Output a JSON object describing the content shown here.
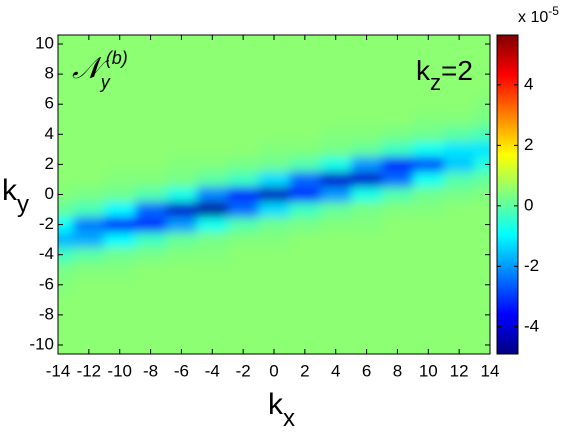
{
  "chart_data": {
    "type": "heatmap",
    "panel_label": {
      "base": "𝒩",
      "sub": "y",
      "sup": "(b)"
    },
    "kz_label": {
      "base": "k",
      "sub": "z",
      "rest": "=2"
    },
    "x_label": {
      "base": "k",
      "sub": "x"
    },
    "y_label": {
      "base": "k",
      "sub": "y"
    },
    "colorbar_label": {
      "base": "x 10",
      "sup": "-5"
    },
    "colormap": "jet",
    "xlim": [
      -14,
      14
    ],
    "ylim": [
      -10.6,
      10.6
    ],
    "zlim": [
      -4.9,
      5.65
    ],
    "xticks": [
      -14,
      -12,
      -10,
      -8,
      -6,
      -4,
      -2,
      0,
      2,
      4,
      6,
      8,
      10,
      12,
      14
    ],
    "yticks": [
      -10,
      -8,
      -6,
      -4,
      -2,
      0,
      2,
      4,
      6,
      8,
      10
    ],
    "zticks": [
      -4,
      -2,
      0,
      2,
      4
    ],
    "x": [
      -14,
      -12,
      -10,
      -8,
      -6,
      -4,
      -2,
      0,
      2,
      4,
      6,
      8,
      10,
      12,
      14
    ],
    "y": [
      10,
      9,
      8,
      7,
      6,
      5,
      4,
      3,
      2,
      1,
      0,
      -1,
      -2,
      -3,
      -4,
      -5,
      -6,
      -7,
      -8,
      -9,
      -10
    ],
    "z": [
      [
        0.5,
        0.5,
        0.5,
        0.5,
        0.5,
        0.5,
        0.5,
        0.5,
        0.5,
        0.5,
        0.5,
        0.5,
        0.5,
        0.5,
        0.5
      ],
      [
        0.5,
        0.5,
        0.5,
        0.5,
        0.5,
        0.5,
        0.5,
        0.5,
        0.5,
        0.5,
        0.5,
        0.5,
        0.5,
        0.5,
        0.5
      ],
      [
        0.5,
        0.5,
        0.5,
        0.5,
        0.5,
        0.5,
        0.5,
        0.5,
        0.5,
        0.5,
        0.5,
        0.5,
        0.5,
        0.5,
        0.5
      ],
      [
        0.5,
        0.5,
        0.5,
        0.5,
        0.5,
        0.5,
        0.5,
        0.5,
        0.5,
        0.5,
        0.5,
        0.5,
        0.5,
        0.5,
        0.5
      ],
      [
        0.5,
        0.5,
        0.5,
        0.5,
        0.5,
        0.5,
        0.5,
        0.5,
        0.5,
        0.5,
        0.5,
        0.5,
        0.5,
        0.5,
        0.4
      ],
      [
        0.5,
        0.5,
        0.5,
        0.5,
        0.5,
        0.5,
        0.5,
        0.5,
        0.5,
        0.5,
        0.5,
        0.5,
        0.4,
        0.4,
        0.3
      ],
      [
        0.5,
        0.5,
        0.5,
        0.5,
        0.5,
        0.5,
        0.5,
        0.5,
        0.5,
        0.4,
        0.4,
        0.3,
        0.2,
        0.0,
        -0.2
      ],
      [
        0.5,
        0.5,
        0.5,
        0.5,
        0.5,
        0.5,
        0.5,
        0.4,
        0.4,
        0.3,
        0.1,
        -0.3,
        -0.8,
        -1.2,
        -1.2
      ],
      [
        0.5,
        0.5,
        0.5,
        0.5,
        0.4,
        0.4,
        0.3,
        0.2,
        -0.1,
        -0.7,
        -2.0,
        -3.1,
        -2.8,
        -1.5,
        -0.6
      ],
      [
        0.5,
        0.5,
        0.4,
        0.4,
        0.3,
        0.0,
        -0.3,
        -1.3,
        -2.5,
        -4.1,
        -4.1,
        -2.5,
        -0.8,
        -0.1,
        0.1
      ],
      [
        0.4,
        0.3,
        0.2,
        -0.1,
        -0.7,
        -2.2,
        -3.1,
        -4.3,
        -3.1,
        -2.0,
        -0.7,
        -0.1,
        0.2,
        0.3,
        0.4
      ],
      [
        0.1,
        -0.2,
        -1.0,
        -2.5,
        -4.1,
        -4.6,
        -2.5,
        -1.3,
        -0.3,
        0.1,
        0.3,
        0.4,
        0.4,
        0.5,
        0.5
      ],
      [
        -0.9,
        -2.3,
        -3.3,
        -3.1,
        -2.0,
        -0.8,
        -0.1,
        0.2,
        0.3,
        0.4,
        0.4,
        0.5,
        0.5,
        0.5,
        0.5
      ],
      [
        -1.7,
        -1.8,
        -1.0,
        -0.3,
        0.1,
        0.3,
        0.4,
        0.4,
        0.5,
        0.5,
        0.5,
        0.5,
        0.5,
        0.5,
        0.5
      ],
      [
        -0.3,
        0.0,
        0.2,
        0.3,
        0.4,
        0.4,
        0.5,
        0.5,
        0.5,
        0.5,
        0.5,
        0.5,
        0.5,
        0.5,
        0.5
      ],
      [
        0.3,
        0.4,
        0.4,
        0.5,
        0.5,
        0.5,
        0.5,
        0.5,
        0.5,
        0.5,
        0.5,
        0.5,
        0.5,
        0.5,
        0.5
      ],
      [
        0.4,
        0.5,
        0.5,
        0.5,
        0.5,
        0.5,
        0.5,
        0.5,
        0.5,
        0.5,
        0.5,
        0.5,
        0.5,
        0.5,
        0.5
      ],
      [
        0.5,
        0.5,
        0.5,
        0.5,
        0.5,
        0.5,
        0.5,
        0.5,
        0.5,
        0.5,
        0.5,
        0.5,
        0.5,
        0.5,
        0.5
      ],
      [
        0.5,
        0.5,
        0.5,
        0.5,
        0.5,
        0.5,
        0.5,
        0.5,
        0.5,
        0.5,
        0.5,
        0.5,
        0.5,
        0.5,
        0.5
      ],
      [
        0.5,
        0.5,
        0.5,
        0.5,
        0.5,
        0.5,
        0.5,
        0.5,
        0.5,
        0.5,
        0.5,
        0.5,
        0.5,
        0.5,
        0.5
      ],
      [
        0.5,
        0.5,
        0.5,
        0.5,
        0.5,
        0.5,
        0.5,
        0.5,
        0.5,
        0.5,
        0.5,
        0.5,
        0.5,
        0.5,
        0.5
      ]
    ]
  }
}
